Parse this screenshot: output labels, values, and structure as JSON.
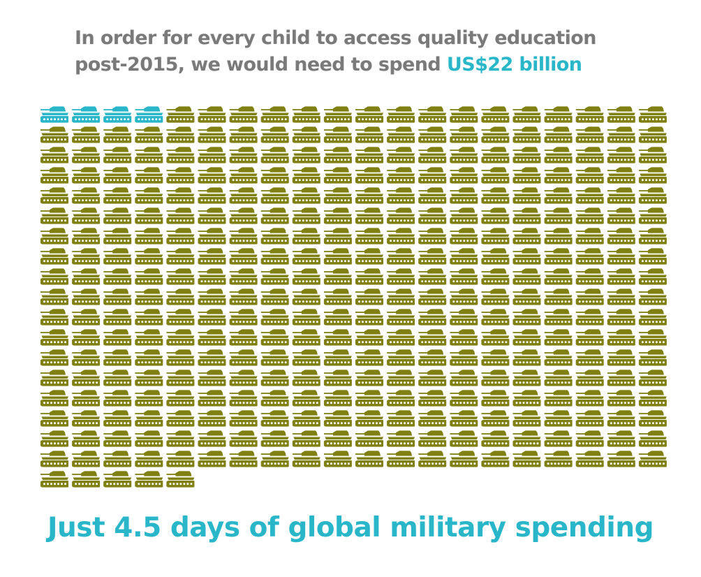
{
  "headline": {
    "line1": "In order for every child to access quality education",
    "line2_prefix": "post-2015, we would need to spend ",
    "line2_highlight": "US$22 billion"
  },
  "footer": {
    "text": "Just 4.5 days of global military spending"
  },
  "colors": {
    "text_gray": "#7a7a7a",
    "accent": "#29b6c9",
    "tank_olive": "#7f7f12",
    "background": "#ffffff"
  },
  "icon": "tank-icon",
  "chart_data": {
    "type": "pictograph",
    "unit_icon": "tank",
    "columns": 20,
    "total_icons": 365,
    "highlighted_icons": 4.5,
    "highlight_label": "US$22 billion",
    "caption": "Just 4.5 days of global military spending"
  }
}
